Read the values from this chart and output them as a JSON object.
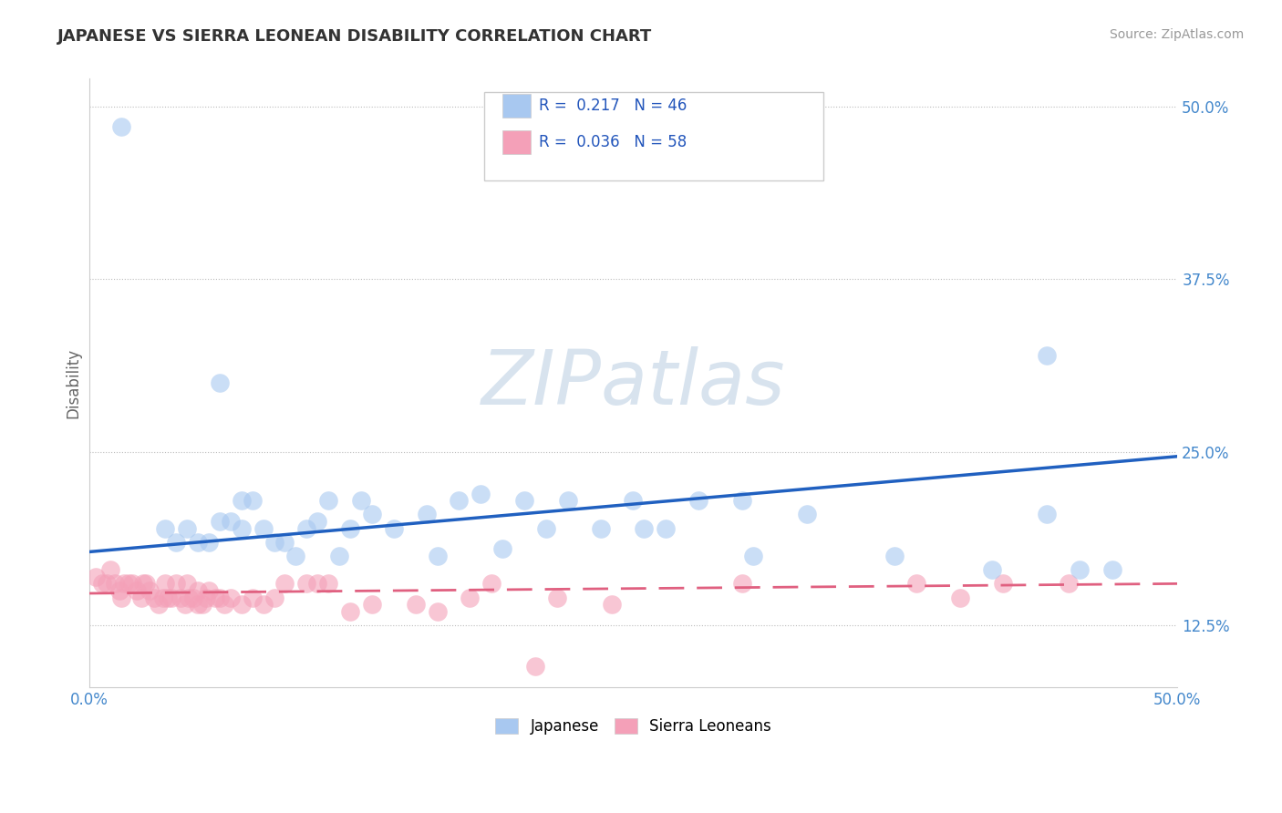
{
  "title": "JAPANESE VS SIERRA LEONEAN DISABILITY CORRELATION CHART",
  "source": "Source: ZipAtlas.com",
  "ylabel": "Disability",
  "xlim": [
    0.0,
    0.5
  ],
  "ylim": [
    0.08,
    0.52
  ],
  "yticks": [
    0.125,
    0.25,
    0.375,
    0.5
  ],
  "yticklabels": [
    "12.5%",
    "25.0%",
    "37.5%",
    "50.0%"
  ],
  "japanese_color": "#a8c8f0",
  "sierra_color": "#f4a0b8",
  "trend_japanese_color": "#2060c0",
  "trend_sierra_color": "#e06080",
  "watermark_color": "#c8d8e8",
  "watermark": "ZIPatlas",
  "japanese_x": [
    0.015,
    0.06,
    0.035,
    0.04,
    0.045,
    0.05,
    0.055,
    0.06,
    0.065,
    0.07,
    0.07,
    0.075,
    0.08,
    0.085,
    0.09,
    0.095,
    0.1,
    0.105,
    0.11,
    0.115,
    0.12,
    0.125,
    0.13,
    0.14,
    0.155,
    0.16,
    0.17,
    0.18,
    0.19,
    0.2,
    0.21,
    0.22,
    0.235,
    0.25,
    0.255,
    0.265,
    0.28,
    0.3,
    0.305,
    0.33,
    0.37,
    0.415,
    0.44,
    0.44,
    0.455,
    0.47
  ],
  "japanese_y": [
    0.485,
    0.3,
    0.195,
    0.185,
    0.195,
    0.185,
    0.185,
    0.2,
    0.2,
    0.215,
    0.195,
    0.215,
    0.195,
    0.185,
    0.185,
    0.175,
    0.195,
    0.2,
    0.215,
    0.175,
    0.195,
    0.215,
    0.205,
    0.195,
    0.205,
    0.175,
    0.215,
    0.22,
    0.18,
    0.215,
    0.195,
    0.215,
    0.195,
    0.215,
    0.195,
    0.195,
    0.215,
    0.215,
    0.175,
    0.205,
    0.175,
    0.165,
    0.205,
    0.32,
    0.165,
    0.165
  ],
  "sierra_x": [
    0.003,
    0.006,
    0.008,
    0.01,
    0.012,
    0.014,
    0.015,
    0.016,
    0.018,
    0.02,
    0.022,
    0.024,
    0.025,
    0.026,
    0.028,
    0.03,
    0.032,
    0.034,
    0.035,
    0.036,
    0.038,
    0.04,
    0.042,
    0.044,
    0.045,
    0.046,
    0.048,
    0.05,
    0.05,
    0.052,
    0.054,
    0.055,
    0.058,
    0.06,
    0.062,
    0.065,
    0.07,
    0.075,
    0.08,
    0.085,
    0.09,
    0.1,
    0.105,
    0.11,
    0.12,
    0.13,
    0.15,
    0.16,
    0.175,
    0.185,
    0.205,
    0.215,
    0.24,
    0.3,
    0.38,
    0.4,
    0.42,
    0.45
  ],
  "sierra_y": [
    0.16,
    0.155,
    0.155,
    0.165,
    0.155,
    0.15,
    0.145,
    0.155,
    0.155,
    0.155,
    0.15,
    0.145,
    0.155,
    0.155,
    0.15,
    0.145,
    0.14,
    0.145,
    0.155,
    0.145,
    0.145,
    0.155,
    0.145,
    0.14,
    0.155,
    0.145,
    0.145,
    0.15,
    0.14,
    0.14,
    0.145,
    0.15,
    0.145,
    0.145,
    0.14,
    0.145,
    0.14,
    0.145,
    0.14,
    0.145,
    0.155,
    0.155,
    0.155,
    0.155,
    0.135,
    0.14,
    0.14,
    0.135,
    0.145,
    0.155,
    0.095,
    0.145,
    0.14,
    0.155,
    0.155,
    0.145,
    0.155,
    0.155
  ],
  "j_trend_x0": 0.0,
  "j_trend_y0": 0.178,
  "j_trend_x1": 0.5,
  "j_trend_y1": 0.247,
  "s_trend_x0": 0.0,
  "s_trend_y0": 0.148,
  "s_trend_x1": 0.5,
  "s_trend_y1": 0.155
}
